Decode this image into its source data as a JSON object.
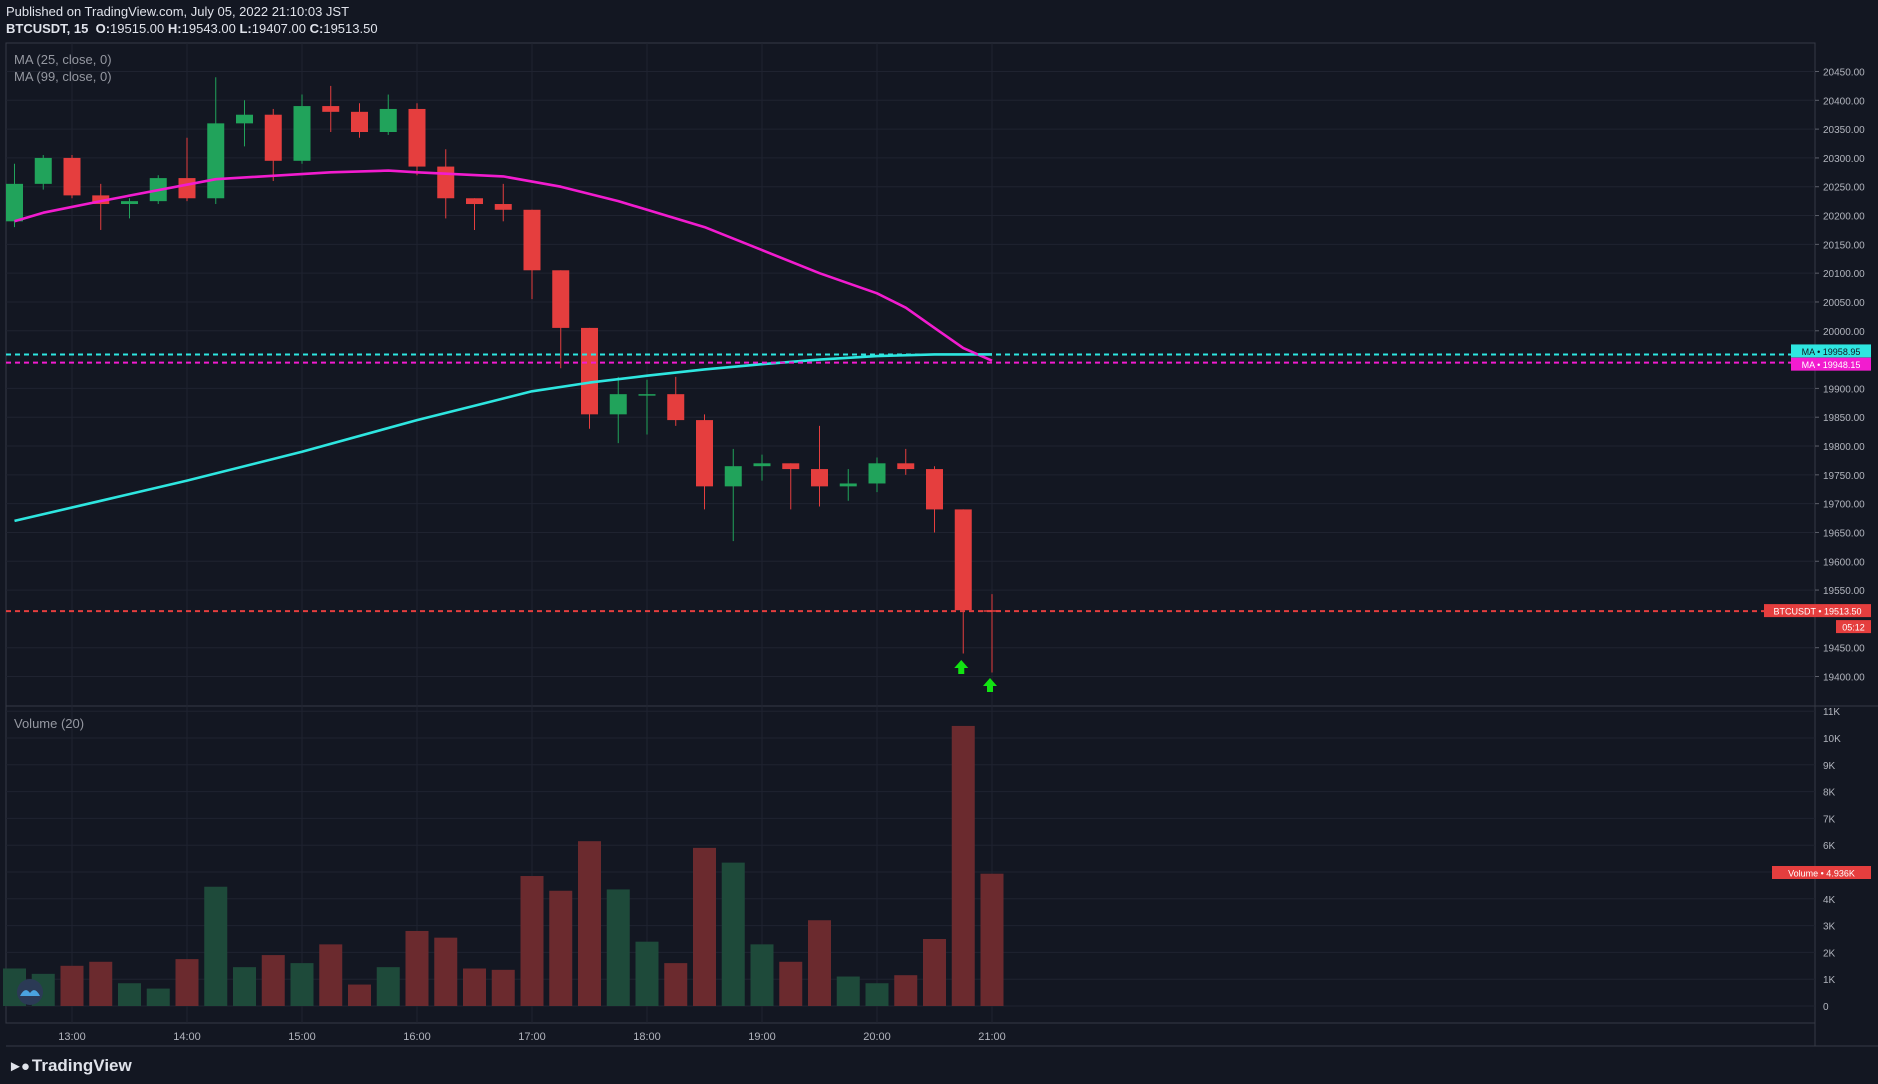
{
  "header": {
    "published": "Published on TradingView.com, July 05, 2022 21:10:03 JST",
    "symbol": "BTCUSDT, 15",
    "o_label": "O:",
    "o": "19515.00",
    "h_label": "H:",
    "h": "19543.00",
    "l_label": "L:",
    "l": "19407.00",
    "c_label": "C:",
    "c": "19513.50"
  },
  "indicators": {
    "ma25": "MA (25, close, 0)",
    "ma99": "MA (99, close, 0)",
    "volume": "Volume (20)"
  },
  "brand": {
    "name": "TradingView",
    "logo": "tradingview-logo-icon"
  },
  "colors": {
    "background": "#131722",
    "grid": "#1f2330",
    "up": "#26a69a",
    "up_candle": "#21a35b",
    "down": "#e53e3e",
    "ma25": "#f21ccf",
    "ma99": "#2ee6e0",
    "vol_up": "#1e4a3a",
    "vol_down": "#6b2a2e",
    "signal": "#12e312"
  },
  "chart_data": {
    "type": "candlestick",
    "interval": "15",
    "time_ticks": [
      "13:00",
      "14:00",
      "15:00",
      "16:00",
      "17:00",
      "18:00",
      "19:00",
      "20:00",
      "21:00"
    ],
    "price_ticks": [
      "20450.00",
      "20400.00",
      "20350.00",
      "20300.00",
      "20250.00",
      "20200.00",
      "20150.00",
      "20100.00",
      "20050.00",
      "20000.00",
      "19900.00",
      "19850.00",
      "19800.00",
      "19750.00",
      "19700.00",
      "19650.00",
      "19600.00",
      "19550.00",
      "19450.00",
      "19400.00"
    ],
    "price_range": [
      19350,
      20480
    ],
    "volume_ticks": [
      "11K",
      "10K",
      "9K",
      "8K",
      "7K",
      "6K",
      "5K",
      "4K",
      "3K",
      "2K",
      "1K",
      "0"
    ],
    "volume_range": [
      0,
      11000
    ],
    "candles": [
      {
        "t": "12:30",
        "o": 20190,
        "h": 20290,
        "l": 20180,
        "c": 20255
      },
      {
        "t": "12:45",
        "o": 20255,
        "h": 20305,
        "l": 20245,
        "c": 20300
      },
      {
        "t": "13:00",
        "o": 20300,
        "h": 20305,
        "l": 20230,
        "c": 20235
      },
      {
        "t": "13:15",
        "o": 20235,
        "h": 20255,
        "l": 20175,
        "c": 20220
      },
      {
        "t": "13:30",
        "o": 20220,
        "h": 20230,
        "l": 20195,
        "c": 20225
      },
      {
        "t": "13:45",
        "o": 20225,
        "h": 20270,
        "l": 20220,
        "c": 20265
      },
      {
        "t": "14:00",
        "o": 20265,
        "h": 20335,
        "l": 20225,
        "c": 20230
      },
      {
        "t": "14:15",
        "o": 20230,
        "h": 20440,
        "l": 20220,
        "c": 20360
      },
      {
        "t": "14:30",
        "o": 20360,
        "h": 20400,
        "l": 20320,
        "c": 20375
      },
      {
        "t": "14:45",
        "o": 20375,
        "h": 20385,
        "l": 20260,
        "c": 20295
      },
      {
        "t": "15:00",
        "o": 20295,
        "h": 20410,
        "l": 20290,
        "c": 20390
      },
      {
        "t": "15:15",
        "o": 20390,
        "h": 20425,
        "l": 20345,
        "c": 20380
      },
      {
        "t": "15:30",
        "o": 20380,
        "h": 20395,
        "l": 20335,
        "c": 20345
      },
      {
        "t": "15:45",
        "o": 20345,
        "h": 20410,
        "l": 20340,
        "c": 20385
      },
      {
        "t": "16:00",
        "o": 20385,
        "h": 20395,
        "l": 20270,
        "c": 20285
      },
      {
        "t": "16:15",
        "o": 20285,
        "h": 20315,
        "l": 20195,
        "c": 20230
      },
      {
        "t": "16:30",
        "o": 20230,
        "h": 20230,
        "l": 20175,
        "c": 20220
      },
      {
        "t": "16:45",
        "o": 20220,
        "h": 20255,
        "l": 20190,
        "c": 20210
      },
      {
        "t": "17:00",
        "o": 20210,
        "h": 20210,
        "l": 20055,
        "c": 20105
      },
      {
        "t": "17:15",
        "o": 20105,
        "h": 20105,
        "l": 19935,
        "c": 20005
      },
      {
        "t": "17:30",
        "o": 20005,
        "h": 20005,
        "l": 19830,
        "c": 19855
      },
      {
        "t": "17:45",
        "o": 19855,
        "h": 19920,
        "l": 19805,
        "c": 19890
      },
      {
        "t": "18:00",
        "o": 19890,
        "h": 19915,
        "l": 19820,
        "c": 19890
      },
      {
        "t": "18:15",
        "o": 19890,
        "h": 19920,
        "l": 19835,
        "c": 19845
      },
      {
        "t": "18:30",
        "o": 19845,
        "h": 19855,
        "l": 19690,
        "c": 19730
      },
      {
        "t": "18:45",
        "o": 19730,
        "h": 19795,
        "l": 19635,
        "c": 19765
      },
      {
        "t": "19:00",
        "o": 19765,
        "h": 19785,
        "l": 19740,
        "c": 19770
      },
      {
        "t": "19:15",
        "o": 19770,
        "h": 19770,
        "l": 19690,
        "c": 19760
      },
      {
        "t": "19:30",
        "o": 19760,
        "h": 19835,
        "l": 19695,
        "c": 19730
      },
      {
        "t": "19:45",
        "o": 19730,
        "h": 19760,
        "l": 19705,
        "c": 19735
      },
      {
        "t": "20:00",
        "o": 19735,
        "h": 19780,
        "l": 19720,
        "c": 19770
      },
      {
        "t": "20:15",
        "o": 19770,
        "h": 19795,
        "l": 19750,
        "c": 19760
      },
      {
        "t": "20:30",
        "o": 19760,
        "h": 19765,
        "l": 19650,
        "c": 19690
      },
      {
        "t": "20:45",
        "o": 19690,
        "h": 19690,
        "l": 19440,
        "c": 19515
      },
      {
        "t": "21:00",
        "o": 19515,
        "h": 19543,
        "l": 19407,
        "c": 19513.5
      }
    ],
    "volume": [
      1400,
      1200,
      1500,
      1650,
      850,
      650,
      1750,
      4450,
      1450,
      1900,
      1600,
      2300,
      800,
      1450,
      2800,
      2550,
      1400,
      1350,
      4850,
      4300,
      6150,
      4350,
      2400,
      1600,
      5900,
      5350,
      2300,
      1650,
      3200,
      1100,
      850,
      1150,
      2500,
      10450,
      4936
    ],
    "ma25": [
      {
        "t": "12:30",
        "v": 20190
      },
      {
        "t": "12:45",
        "v": 20205
      },
      {
        "t": "13:15",
        "v": 20225
      },
      {
        "t": "14:15",
        "v": 20263
      },
      {
        "t": "15:15",
        "v": 20275
      },
      {
        "t": "15:45",
        "v": 20278
      },
      {
        "t": "16:00",
        "v": 20275
      },
      {
        "t": "16:45",
        "v": 20268
      },
      {
        "t": "17:15",
        "v": 20250
      },
      {
        "t": "17:45",
        "v": 20225
      },
      {
        "t": "18:00",
        "v": 20210
      },
      {
        "t": "18:30",
        "v": 20180
      },
      {
        "t": "19:00",
        "v": 20140
      },
      {
        "t": "19:30",
        "v": 20100
      },
      {
        "t": "20:00",
        "v": 20065
      },
      {
        "t": "20:15",
        "v": 20040
      },
      {
        "t": "20:30",
        "v": 20005
      },
      {
        "t": "20:45",
        "v": 19970
      },
      {
        "t": "21:00",
        "v": 19948.15
      }
    ],
    "ma99": [
      {
        "t": "12:30",
        "v": 19670
      },
      {
        "t": "13:15",
        "v": 19705
      },
      {
        "t": "14:00",
        "v": 19740
      },
      {
        "t": "15:00",
        "v": 19790
      },
      {
        "t": "16:00",
        "v": 19845
      },
      {
        "t": "16:30",
        "v": 19870
      },
      {
        "t": "17:00",
        "v": 19895
      },
      {
        "t": "17:30",
        "v": 19910
      },
      {
        "t": "18:00",
        "v": 19922
      },
      {
        "t": "18:30",
        "v": 19933
      },
      {
        "t": "19:00",
        "v": 19942
      },
      {
        "t": "19:30",
        "v": 19950
      },
      {
        "t": "20:00",
        "v": 19956
      },
      {
        "t": "20:30",
        "v": 19959
      },
      {
        "t": "21:00",
        "v": 19958.95
      }
    ],
    "labels": {
      "ma99_value": "19958.95",
      "ma25_value": "19948.15",
      "ma_tag": "MA",
      "symbol_tag": "BTCUSDT",
      "last_price": "19513.50",
      "countdown": "05:12",
      "volume_tag": "Volume",
      "last_volume": "4.936K"
    },
    "signals": [
      {
        "t": "20:45",
        "type": "buy-arrow"
      },
      {
        "t": "21:00",
        "type": "buy-arrow"
      }
    ]
  }
}
